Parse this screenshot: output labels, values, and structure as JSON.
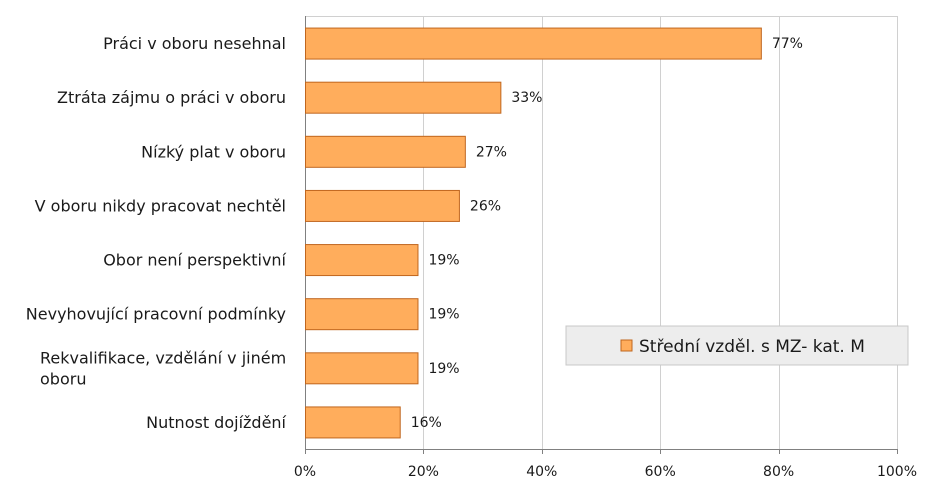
{
  "chart_data": {
    "type": "bar",
    "orientation": "horizontal",
    "categories": [
      "Práci v oboru nesehnal",
      "Ztráta zájmu o práci v oboru",
      "Nízký plat v oboru",
      "V oboru nikdy pracovat nechtěl",
      "Obor není perspektivní",
      "Nevyhovující pracovní podmínky",
      "Rekvalifikace, vzdělání v jiném oboru",
      "Nutnost dojíždění"
    ],
    "category_label_lines": [
      [
        "Práci v oboru nesehnal"
      ],
      [
        "Ztráta zájmu o práci v oboru"
      ],
      [
        "Nízký plat v oboru"
      ],
      [
        "V oboru nikdy pracovat nechtěl"
      ],
      [
        "Obor není perspektivní"
      ],
      [
        "Nevyhovující pracovní podmínky"
      ],
      [
        "Rekvalifikace, vzdělání v jiném",
        "oboru"
      ],
      [
        "Nutnost dojíždění"
      ]
    ],
    "series": [
      {
        "name": "Střední vzděl. s MZ- kat. M",
        "values": [
          77,
          33,
          27,
          26,
          19,
          19,
          19,
          16
        ],
        "data_labels": [
          "77%",
          "33%",
          "27%",
          "26%",
          "19%",
          "19%",
          "19%",
          "16%"
        ],
        "color": "#FFAD5C",
        "border_color": "#C0661E"
      }
    ],
    "xlim": [
      0,
      100
    ],
    "x_ticks": [
      0,
      20,
      40,
      60,
      80,
      100
    ],
    "x_tick_labels": [
      "0%",
      "20%",
      "40%",
      "60%",
      "80%",
      "100%"
    ],
    "grid": true,
    "legend_position": "right-lower",
    "title": "",
    "xlabel": "",
    "ylabel": ""
  },
  "colors": {
    "gridline": "#D0D0D0",
    "plot_border": "#808080",
    "legend_bg": "#EDEDED",
    "legend_border": "#C8C8C8"
  }
}
